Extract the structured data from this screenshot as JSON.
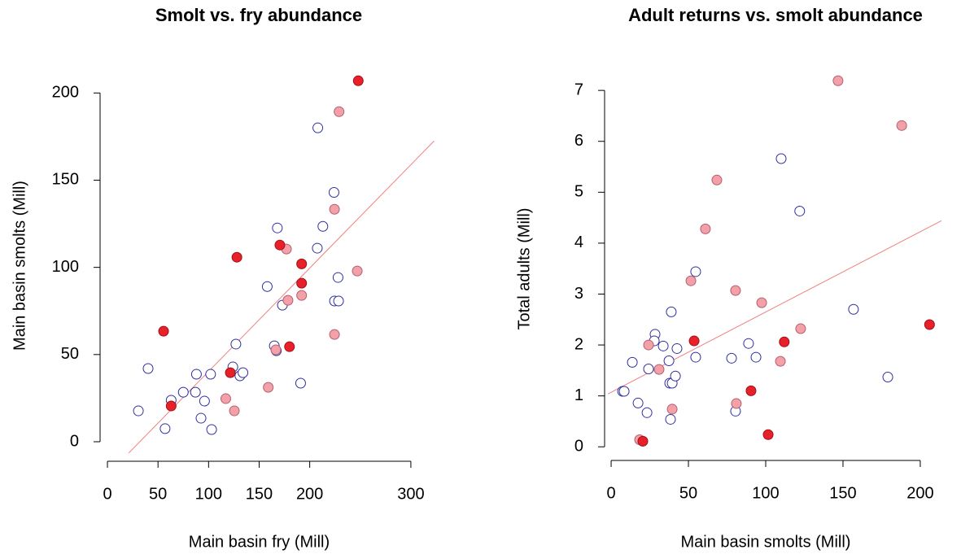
{
  "chart_data": [
    {
      "type": "scatter",
      "title": "Smolt vs. fry abundance",
      "x_label": "Main basin fry (Mill)",
      "y_label": "Main basin smolts (Mill)",
      "xlim": [
        -12.9,
        324.2
      ],
      "ylim": [
        -7,
        209
      ],
      "xticks": [
        0,
        50,
        100,
        150,
        200,
        300
      ],
      "yticks": [
        0,
        50,
        100,
        150,
        200
      ],
      "grid": false,
      "series": [
        {
          "color": "#2f2f9f",
          "fill": "#ffffff",
          "x": [
            30.6,
            40.2,
            57,
            63,
            75,
            87,
            88,
            92.5,
            96,
            102,
            103,
            124,
            127,
            131,
            134,
            158,
            165,
            167,
            168,
            173,
            191,
            208,
            207.5,
            213,
            224,
            224.5,
            228.5,
            228
          ],
          "values": [
            17.7,
            42,
            7.5,
            23.8,
            28.4,
            28.4,
            38.7,
            13.5,
            23.3,
            38.7,
            7,
            42.9,
            56,
            37.8,
            39.6,
            89,
            55,
            52.2,
            122.6,
            78.3,
            33.6,
            180,
            111,
            123.5,
            143,
            80.7,
            80.7,
            94.2
          ]
        },
        {
          "color": "#b06070",
          "fill": "#f4a0a8",
          "x": [
            159,
            117,
            125.5,
            166.5,
            177,
            178.5,
            192,
            224.5,
            224.5,
            229,
            247
          ],
          "values": [
            31.2,
            24.7,
            17.7,
            52.7,
            110.5,
            81.1,
            83.9,
            133.3,
            61.5,
            189.3,
            97.9
          ]
        },
        {
          "color": "#a01018",
          "fill": "#e8202a",
          "x": [
            55.5,
            63,
            121.5,
            128,
            170.5,
            180,
            192,
            192,
            248
          ],
          "values": [
            63.4,
            20.5,
            39.6,
            105.8,
            112.8,
            54.5,
            102,
            90.9,
            207
          ]
        }
      ],
      "trend_line": {
        "color": "#f08080",
        "x": [
          21,
          323
        ],
        "values": [
          -6.5,
          172.5
        ]
      }
    },
    {
      "type": "scatter",
      "title": "Adult returns vs. smolt abundance",
      "x_label": "Main basin smolts (Mill)",
      "y_label": "Total adults (Mill)",
      "xlim": [
        -7.4,
        215.3
      ],
      "ylim": [
        -0.14,
        7.13
      ],
      "xticks": [
        0,
        50,
        100,
        150,
        200
      ],
      "yticks": [
        0,
        1,
        2,
        3,
        4,
        5,
        6,
        7
      ],
      "grid": false,
      "series": [
        {
          "color": "#2f2f9f",
          "fill": "#ffffff",
          "x": [
            7.4,
            8.4,
            13.7,
            17.4,
            23.2,
            24.2,
            28.4,
            27.9,
            33.7,
            37.4,
            37.9,
            39.5,
            38.9,
            38.4,
            41.6,
            42.6,
            54.7,
            54.7,
            77.9,
            80.5,
            88.9,
            93.7,
            110,
            122,
            156.8,
            179
          ],
          "values": [
            1.09,
            1.09,
            1.66,
            0.86,
            0.67,
            1.53,
            2.21,
            2.08,
            1.98,
            1.69,
            1.25,
            1.25,
            2.65,
            0.54,
            1.39,
            1.93,
            1.76,
            3.44,
            1.74,
            0.7,
            2.03,
            1.76,
            5.66,
            4.63,
            2.7,
            1.37
          ]
        },
        {
          "color": "#b06070",
          "fill": "#f4a0a8",
          "x": [
            18.4,
            24.2,
            31,
            39.5,
            51.6,
            61,
            80.5,
            81,
            68.4,
            97.4,
            109.5,
            122.6,
            146.8,
            188
          ],
          "values": [
            0.14,
            2.0,
            1.52,
            0.74,
            3.26,
            4.28,
            3.07,
            0.85,
            5.24,
            2.83,
            1.68,
            2.32,
            7.19,
            6.31
          ]
        },
        {
          "color": "#a01018",
          "fill": "#e8202a",
          "x": [
            20.5,
            53.7,
            90.5,
            101.6,
            112,
            206
          ],
          "values": [
            0.11,
            2.08,
            1.1,
            0.24,
            2.06,
            2.4
          ]
        }
      ],
      "trend_line": {
        "color": "#f08080",
        "x": [
          -2,
          213.7
        ],
        "values": [
          1.04,
          4.44
        ]
      }
    }
  ]
}
